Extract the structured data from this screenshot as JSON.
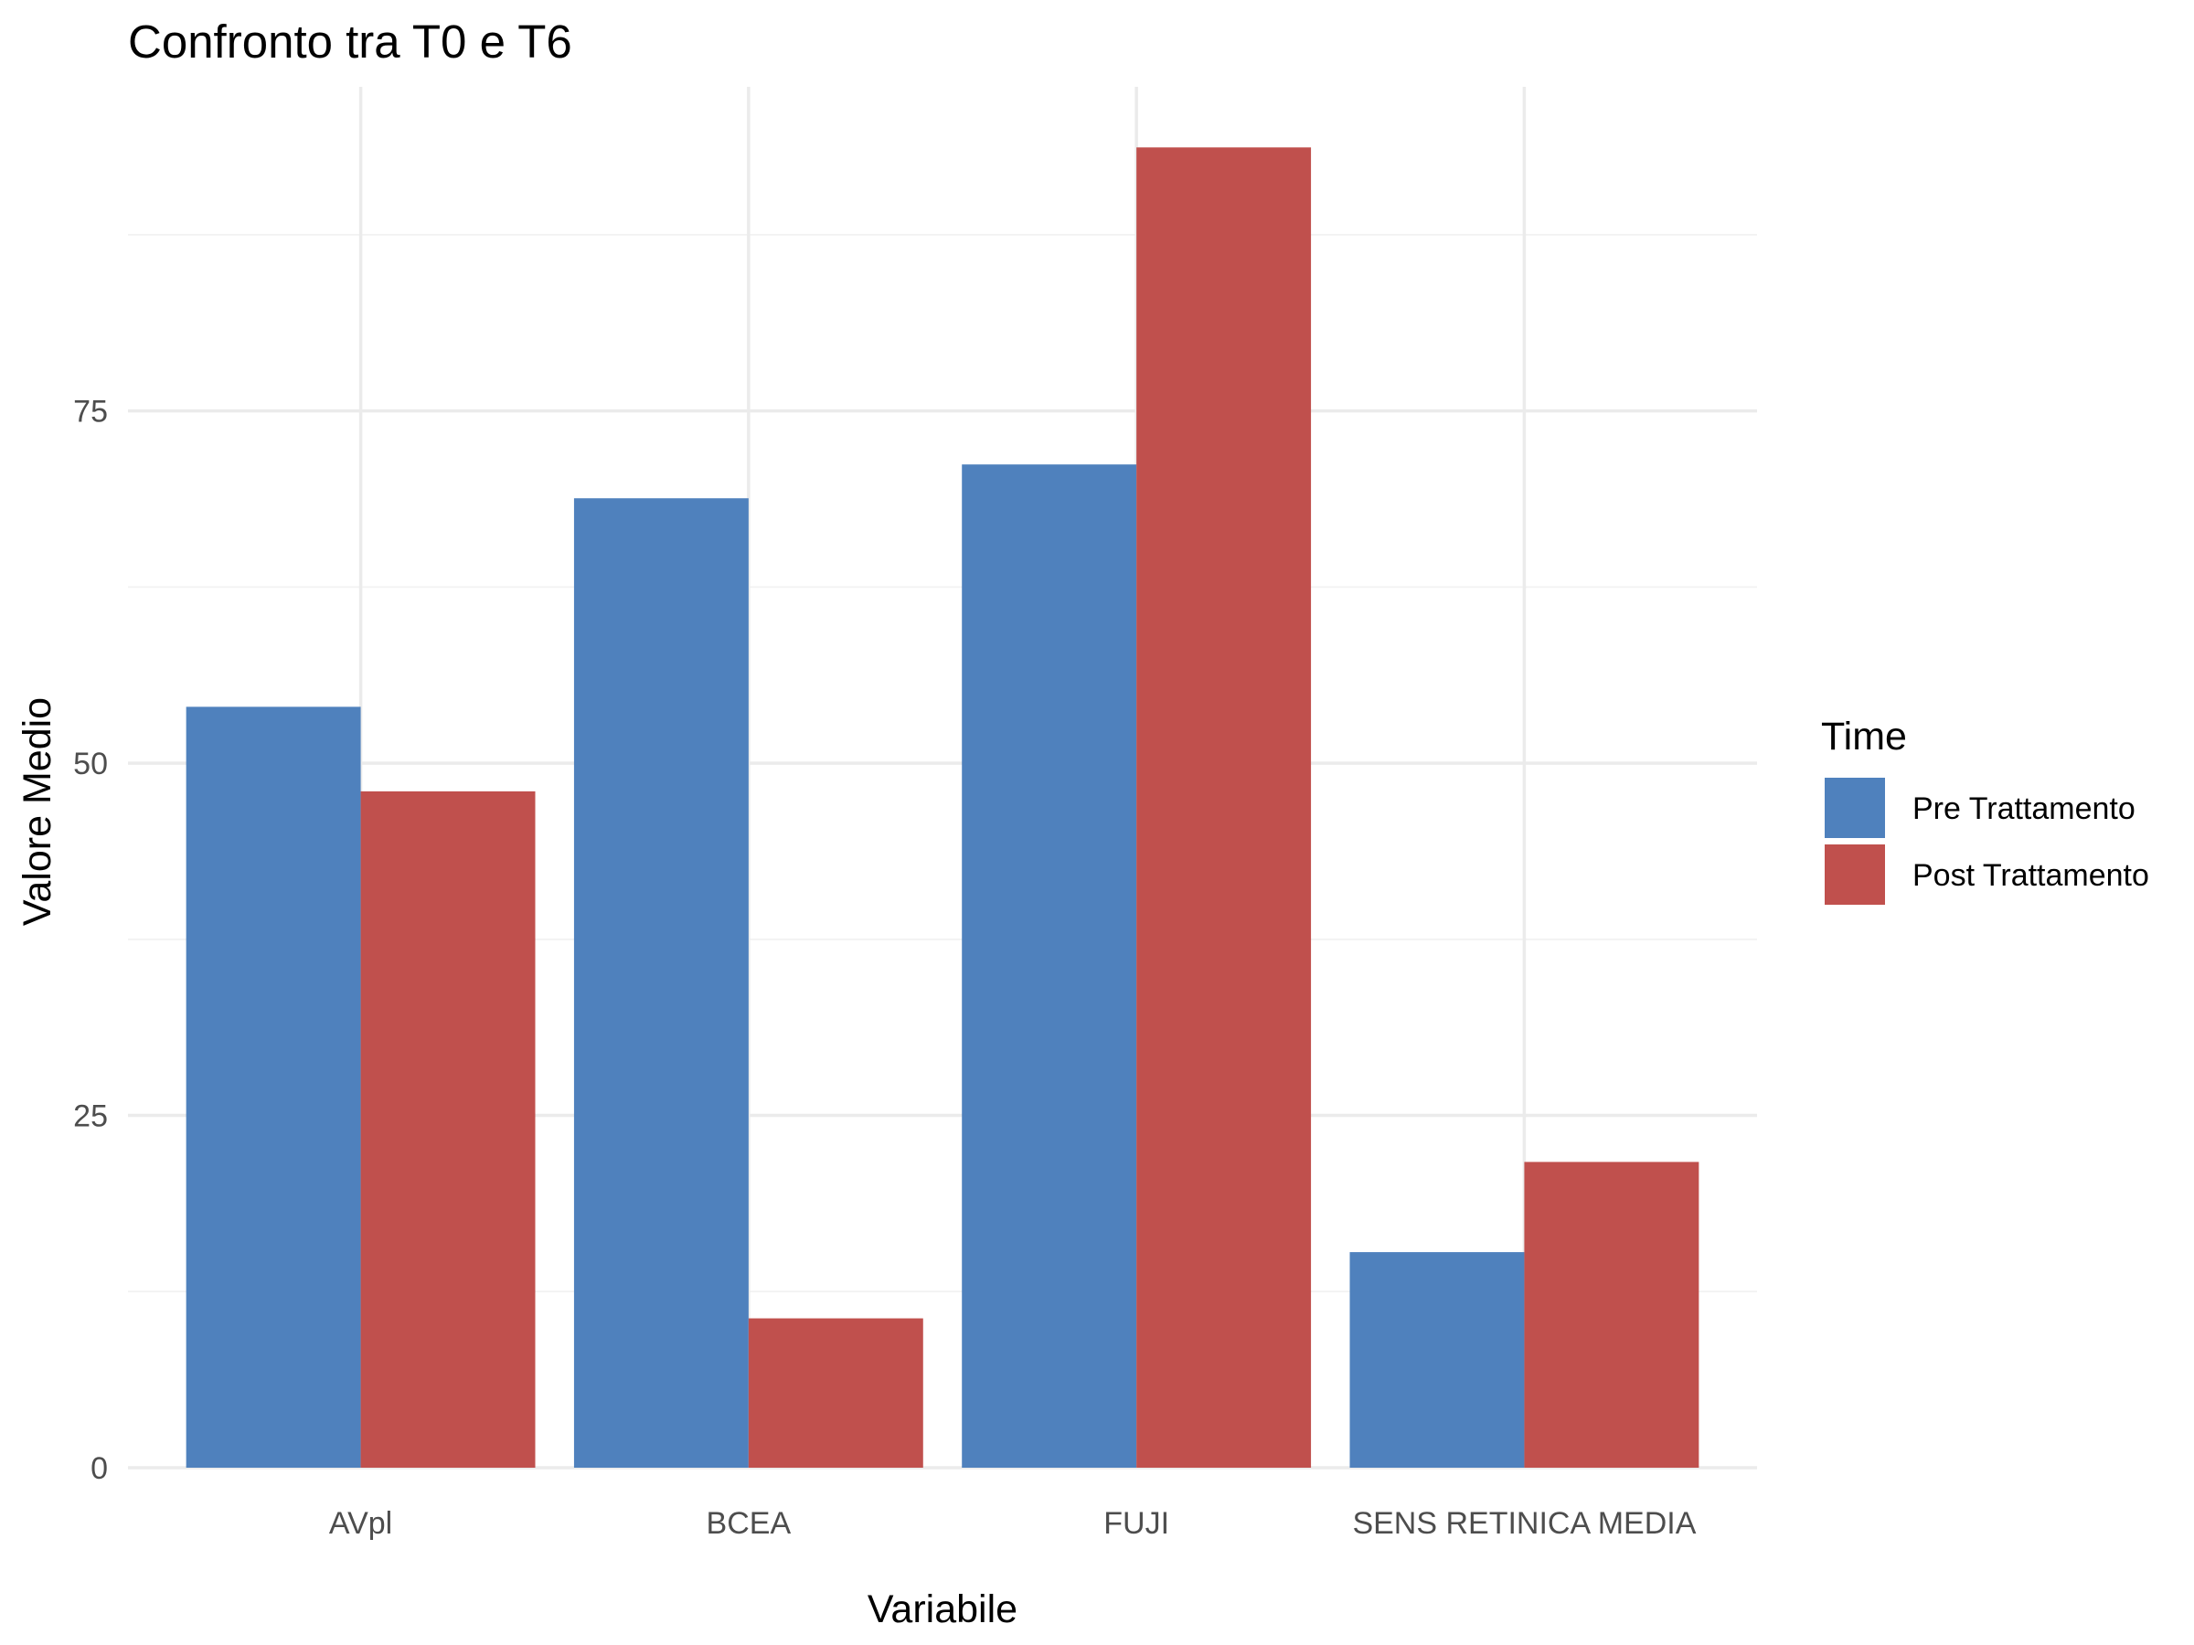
{
  "chart_data": {
    "type": "bar",
    "title": "Confronto tra T0 e T6",
    "xlabel": "Variabile",
    "ylabel": "Valore Medio",
    "categories": [
      "AVpl",
      "BCEA",
      "FUJI",
      "SENS RETINICA MEDIA"
    ],
    "series": [
      {
        "name": "Pre Trattamento",
        "color": "#4f81bd",
        "values": [
          54.0,
          68.8,
          71.2,
          15.3
        ]
      },
      {
        "name": "Post Trattamento",
        "color": "#c0504d",
        "values": [
          48.0,
          10.6,
          93.7,
          21.7
        ]
      }
    ],
    "ylim": [
      0,
      98
    ],
    "yticks": [
      0,
      25,
      50,
      75
    ],
    "grid": true,
    "legend": {
      "title": "Time",
      "position": "right"
    }
  }
}
